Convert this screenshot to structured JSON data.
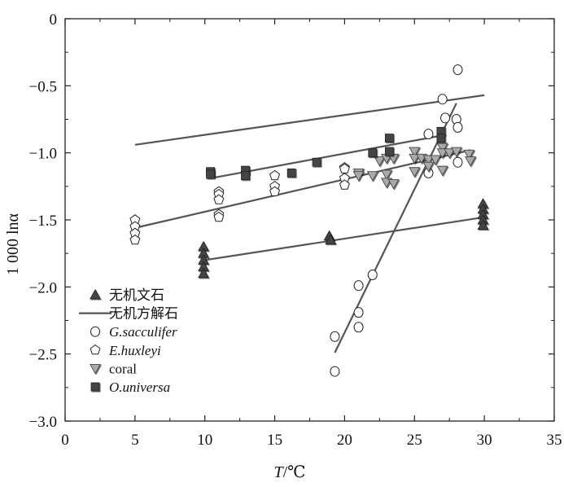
{
  "chart_data": {
    "type": "scatter",
    "xlabel": "T/℃",
    "xlabel_italic": "T",
    "xlabel_unit": "/℃",
    "ylabel": "1 000 lnα",
    "xlim": [
      0,
      35
    ],
    "ylim": [
      -3.0,
      0
    ],
    "xticks": [
      0,
      5,
      10,
      15,
      20,
      25,
      30,
      35
    ],
    "yticks": [
      0,
      -0.5,
      -1.0,
      -1.5,
      -2.0,
      -2.5,
      -3.0
    ],
    "xtick_labels": [
      "0",
      "5",
      "10",
      "15",
      "20",
      "25",
      "30",
      "35"
    ],
    "ytick_labels": [
      "0",
      "−0.5",
      "−1.0",
      "−1.5",
      "−2.0",
      "−2.5",
      "−3.0"
    ],
    "grid": false,
    "legend_position": "bottom-left",
    "legend": [
      {
        "label": "无机文石",
        "marker": "triangle-up",
        "fill": "#444444",
        "italic": false
      },
      {
        "label": "无机方解石",
        "marker": "line",
        "fill": "#555555",
        "italic": false
      },
      {
        "label": "G.sacculifer",
        "marker": "circle",
        "fill": "#ffffff",
        "italic": true
      },
      {
        "label": "E.huxleyi",
        "marker": "pentagon",
        "fill": "#ffffff",
        "italic": true
      },
      {
        "label": "coral",
        "marker": "triangle-down",
        "fill": "#aaaaaa",
        "italic": false
      },
      {
        "label": "O.universa",
        "marker": "square",
        "fill": "#444444",
        "italic": true
      }
    ],
    "series": [
      {
        "name": "无机文石",
        "marker": "triangle-up",
        "points": [
          [
            9.9,
            -1.7
          ],
          [
            9.9,
            -1.75
          ],
          [
            9.9,
            -1.8
          ],
          [
            9.9,
            -1.85
          ],
          [
            9.9,
            -1.9
          ],
          [
            18.9,
            -1.62
          ],
          [
            19.0,
            -1.65
          ],
          [
            29.9,
            -1.38
          ],
          [
            29.9,
            -1.42
          ],
          [
            29.9,
            -1.46
          ],
          [
            29.9,
            -1.5
          ],
          [
            29.9,
            -1.54
          ]
        ]
      },
      {
        "name": "无机方解石",
        "lines": [
          {
            "from": [
              5,
              -0.94
            ],
            "to": [
              30,
              -0.57
            ]
          },
          {
            "from": [
              10,
              -1.8
            ],
            "to": [
              30,
              -1.48
            ]
          }
        ]
      },
      {
        "name": "G.sacculifer",
        "marker": "circle",
        "points": [
          [
            19.3,
            -2.37
          ],
          [
            19.3,
            -2.63
          ],
          [
            21.0,
            -1.99
          ],
          [
            21.0,
            -2.19
          ],
          [
            21.0,
            -2.3
          ],
          [
            22.0,
            -1.91
          ],
          [
            26.0,
            -0.86
          ],
          [
            26.0,
            -1.15
          ],
          [
            27.0,
            -0.6
          ],
          [
            27.2,
            -0.74
          ],
          [
            28.1,
            -0.38
          ],
          [
            28.0,
            -0.75
          ],
          [
            28.1,
            -0.81
          ],
          [
            28.1,
            -1.07
          ]
        ],
        "fit": {
          "from": [
            19.3,
            -2.49
          ],
          "to": [
            28.0,
            -0.63
          ]
        }
      },
      {
        "name": "E.huxleyi",
        "marker": "pentagon",
        "points": [
          [
            5.0,
            -1.5
          ],
          [
            5.0,
            -1.55
          ],
          [
            5.0,
            -1.6
          ],
          [
            5.0,
            -1.65
          ],
          [
            11.0,
            -1.29
          ],
          [
            11.0,
            -1.31
          ],
          [
            11.0,
            -1.35
          ],
          [
            11.0,
            -1.46
          ],
          [
            11.0,
            -1.48
          ],
          [
            15.0,
            -1.17
          ],
          [
            15.0,
            -1.25
          ],
          [
            15.0,
            -1.29
          ],
          [
            20.0,
            -1.11
          ],
          [
            20.0,
            -1.12
          ],
          [
            20.0,
            -1.19
          ],
          [
            20.0,
            -1.24
          ]
        ],
        "fit": {
          "from": [
            5,
            -1.56
          ],
          "to": [
            29,
            -0.98
          ]
        }
      },
      {
        "name": "coral",
        "marker": "triangle-down",
        "points": [
          [
            21.0,
            -1.15
          ],
          [
            21.0,
            -1.17
          ],
          [
            22.0,
            -1.17
          ],
          [
            22.5,
            -1.06
          ],
          [
            23.0,
            -1.04
          ],
          [
            23.0,
            -1.16
          ],
          [
            23.0,
            -1.22
          ],
          [
            23.5,
            -1.04
          ],
          [
            23.5,
            -1.23
          ],
          [
            25.0,
            -0.99
          ],
          [
            25.0,
            -1.04
          ],
          [
            25.0,
            -1.14
          ],
          [
            25.5,
            -1.04
          ],
          [
            26.0,
            -1.05
          ],
          [
            26.0,
            -1.1
          ],
          [
            26.5,
            -1.05
          ],
          [
            27.0,
            -0.96
          ],
          [
            27.0,
            -1.0
          ],
          [
            27.0,
            -1.13
          ],
          [
            27.5,
            -1.0
          ],
          [
            28.0,
            -0.99
          ],
          [
            28.9,
            -1.01
          ],
          [
            29.0,
            -1.06
          ]
        ]
      },
      {
        "name": "O.universa",
        "marker": "square",
        "points": [
          [
            10.4,
            -1.14
          ],
          [
            10.4,
            -1.16
          ],
          [
            12.9,
            -1.13
          ],
          [
            12.9,
            -1.17
          ],
          [
            16.2,
            -1.15
          ],
          [
            18.0,
            -1.07
          ],
          [
            22.0,
            -1.0
          ],
          [
            23.2,
            -0.89
          ],
          [
            23.2,
            -0.99
          ],
          [
            26.9,
            -0.84
          ],
          [
            26.9,
            -0.89
          ]
        ],
        "fit": {
          "from": [
            10.4,
            -1.19
          ],
          "to": [
            27,
            -0.87
          ]
        }
      }
    ]
  }
}
